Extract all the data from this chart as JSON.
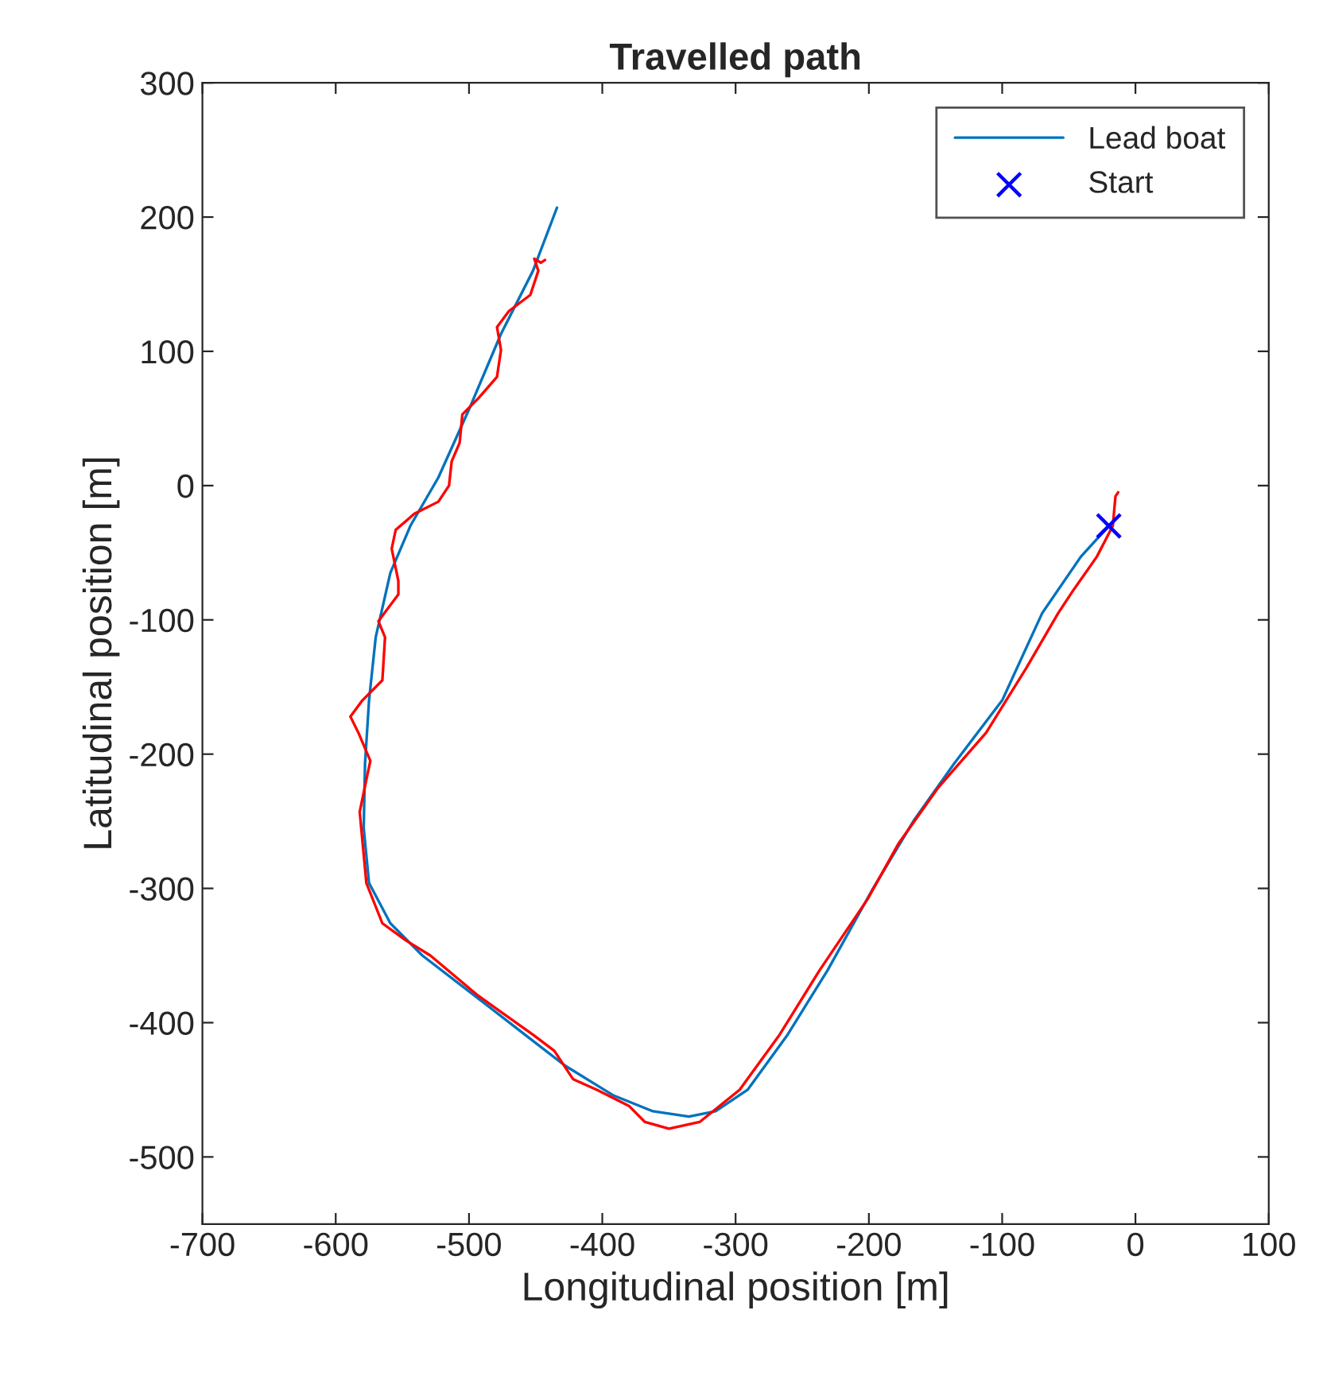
{
  "chart_data": {
    "type": "line",
    "title": "Travelled path",
    "xlabel": "Longitudinal position [m]",
    "ylabel": "Latitudinal position [m]",
    "xlim": [
      -700,
      100
    ],
    "ylim": [
      -550,
      300
    ],
    "xticks": [
      -700,
      -600,
      -500,
      -400,
      -300,
      -200,
      -100,
      0,
      100
    ],
    "yticks": [
      -500,
      -400,
      -300,
      -200,
      -100,
      0,
      100,
      200,
      300
    ],
    "grid": false,
    "legend": "top right",
    "series": [
      {
        "name": "Lead boat",
        "color": "#0072bd",
        "x": [
          -20,
          -41,
          -70,
          -100,
          -136,
          -166,
          -198,
          -231,
          -261,
          -291,
          -315,
          -335,
          -362,
          -392,
          -428,
          -458,
          -493,
          -535,
          -559,
          -575,
          -579,
          -578,
          -575,
          -570,
          -559,
          -544,
          -523,
          -499,
          -476,
          -452,
          -434
        ],
        "values": [
          -30,
          -53,
          -95,
          -160,
          -207,
          -249,
          -302,
          -361,
          -409,
          -450,
          -466,
          -470,
          -466,
          -454,
          -432,
          -409,
          -382,
          -350,
          -326,
          -296,
          -255,
          -207,
          -160,
          -113,
          -65,
          -30,
          6,
          59,
          113,
          160,
          207
        ]
      },
      {
        "color": "#ff0000",
        "x": [
          -13,
          -15,
          -17,
          -29,
          -46,
          -58,
          -82,
          -112,
          -148,
          -178,
          -201,
          -237,
          -267,
          -297,
          -327,
          -350,
          -368,
          -380,
          -404,
          -422,
          -436,
          -452,
          -493,
          -529,
          -547,
          -565,
          -577,
          -582,
          -577,
          -574,
          -583,
          -589,
          -580,
          -565,
          -563,
          -568,
          -553,
          -553,
          -558,
          -555,
          -541,
          -523,
          -515,
          -513,
          -507,
          -505,
          -493,
          -479,
          -476,
          -479,
          -470,
          -454,
          -448,
          -451,
          -446,
          -443
        ],
        "values": [
          -5,
          -8,
          -30,
          -53,
          -77,
          -95,
          -136,
          -184,
          -225,
          -267,
          -308,
          -361,
          -409,
          -450,
          -474,
          -479,
          -474,
          -462,
          -450,
          -442,
          -421,
          -409,
          -380,
          -350,
          -339,
          -326,
          -296,
          -243,
          -219,
          -205,
          -184,
          -172,
          -160,
          -145,
          -113,
          -101,
          -81,
          -71,
          -47,
          -33,
          -21,
          -12,
          0,
          18,
          32,
          53,
          65,
          81,
          101,
          118,
          130,
          142,
          160,
          169,
          166,
          168
        ]
      },
      {
        "name": "Start",
        "type": "scatter",
        "marker": "cross",
        "color": "#0000ff",
        "x": [
          -20
        ],
        "values": [
          -30
        ]
      }
    ]
  }
}
